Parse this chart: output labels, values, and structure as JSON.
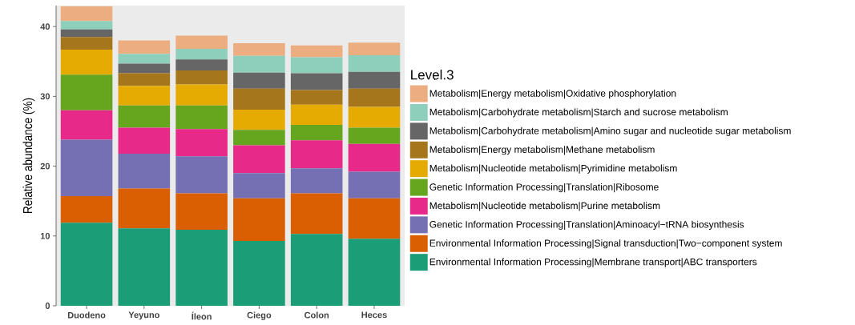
{
  "chart_data": {
    "type": "bar",
    "stacked": true,
    "ylabel": "Relative abundance (%)",
    "legend_title": "Level.3",
    "legend": "right",
    "grid": false,
    "categories": [
      "Duodeno",
      "Yeyuno",
      "Íleon",
      "Ciego",
      "Colon",
      "Heces"
    ],
    "ylim": [
      0,
      43
    ],
    "yticks": [
      0,
      10,
      20,
      30,
      40
    ],
    "series": [
      {
        "name": "Environmental Information Processing|Membrane transport|ABC transporters",
        "color": "#1b9e77",
        "values": [
          11.9,
          11.1,
          10.9,
          9.3,
          10.3,
          9.6
        ]
      },
      {
        "name": "Environmental Information Processing|Signal transduction|Two−component system",
        "color": "#d95f02",
        "values": [
          3.8,
          5.7,
          5.2,
          6.1,
          5.8,
          5.8
        ]
      },
      {
        "name": "Genetic Information Processing|Translation|Aminoacyl−tRNA biosynthesis",
        "color": "#7570b3",
        "values": [
          8.1,
          5.0,
          5.3,
          3.6,
          3.6,
          3.8
        ]
      },
      {
        "name": "Metabolism|Nucleotide metabolism|Purine metabolism",
        "color": "#e7298a",
        "values": [
          4.2,
          3.7,
          3.9,
          4.0,
          4.0,
          4.0
        ]
      },
      {
        "name": "Genetic Information Processing|Translation|Ribosome",
        "color": "#66a61e",
        "values": [
          5.1,
          3.2,
          3.4,
          2.2,
          2.2,
          2.3
        ]
      },
      {
        "name": "Metabolism|Nucleotide metabolism|Pyrimidine metabolism",
        "color": "#e6ab02",
        "values": [
          3.6,
          2.8,
          3.0,
          2.9,
          2.9,
          3.0
        ]
      },
      {
        "name": "Metabolism|Energy metabolism|Methane metabolism",
        "color": "#a6761d",
        "values": [
          1.8,
          1.8,
          2.0,
          3.0,
          2.1,
          2.6
        ]
      },
      {
        "name": "Metabolism|Carbohydrate metabolism|Amino sugar and nucleotide sugar metabolism",
        "color": "#666666",
        "values": [
          1.1,
          1.4,
          1.6,
          2.3,
          2.4,
          2.4
        ]
      },
      {
        "name": "Metabolism|Carbohydrate metabolism|Starch and sucrose metabolism",
        "color": "#8ecfbc",
        "values": [
          1.2,
          1.4,
          1.5,
          2.4,
          2.3,
          2.4
        ]
      },
      {
        "name": "Metabolism|Energy metabolism|Oxidative phosphorylation",
        "color": "#ecae80",
        "values": [
          2.1,
          1.9,
          1.9,
          1.8,
          1.7,
          1.8
        ]
      }
    ]
  }
}
